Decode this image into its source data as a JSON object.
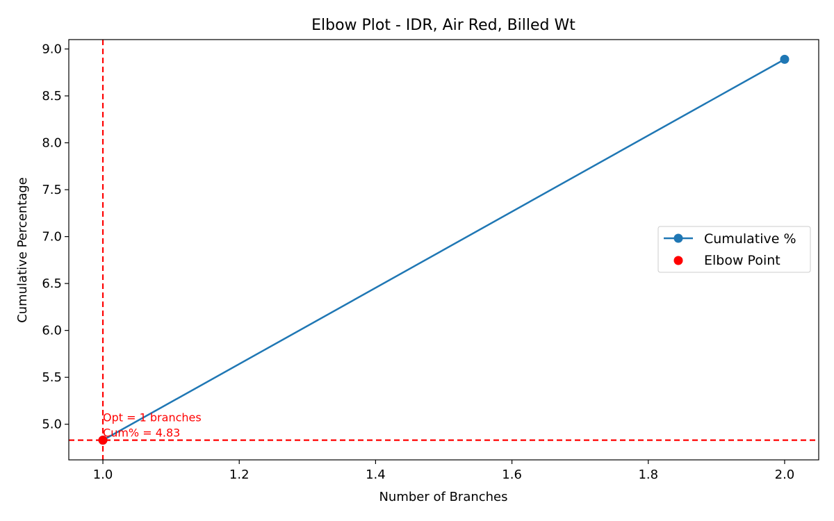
{
  "chart_data": {
    "type": "line",
    "title": "Elbow Plot - IDR, Air Red, Billed Wt",
    "xlabel": "Number of Branches",
    "ylabel": "Cumulative Percentage",
    "xlim": [
      0.95,
      2.05
    ],
    "ylim": [
      4.62,
      9.1
    ],
    "xticks": [
      "1.0",
      "1.2",
      "1.4",
      "1.6",
      "1.8",
      "2.0"
    ],
    "xtick_values": [
      1.0,
      1.2,
      1.4,
      1.6,
      1.8,
      2.0
    ],
    "yticks": [
      "5.0",
      "5.5",
      "6.0",
      "6.5",
      "7.0",
      "7.5",
      "8.0",
      "8.5",
      "9.0"
    ],
    "ytick_values": [
      5.0,
      5.5,
      6.0,
      6.5,
      7.0,
      7.5,
      8.0,
      8.5,
      9.0
    ],
    "grid": false,
    "legend_position": "right",
    "series": [
      {
        "name": "Cumulative %",
        "x": [
          1,
          2
        ],
        "y": [
          4.83,
          8.89
        ],
        "color": "#1f77b4",
        "marker": "circle"
      }
    ],
    "elbow_point": {
      "name": "Elbow Point",
      "x": 1,
      "y": 4.83,
      "color": "#ff0000"
    },
    "reference_lines": {
      "vertical_x": 1,
      "horizontal_y": 4.83,
      "color": "#ff0000",
      "style": "dashed"
    },
    "annotation": {
      "line1": "Opt = 1 branches",
      "line2": "Cum% = 4.83",
      "color": "#ff0000"
    }
  }
}
